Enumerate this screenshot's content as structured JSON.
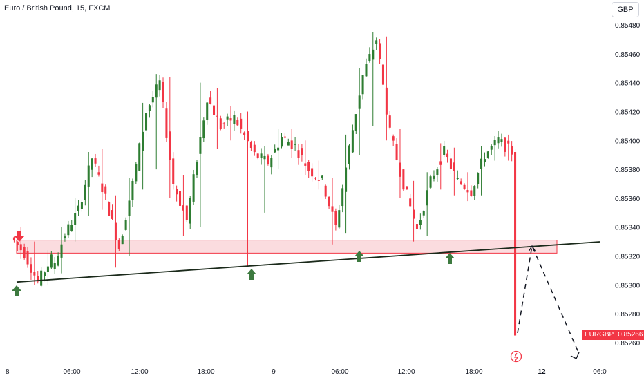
{
  "header": {
    "symbol_title": "Euro / British Pound, 15, FXCM",
    "currency_button": "GBP"
  },
  "last_price_label": {
    "symbol": "EURGBP",
    "price": "0.85266"
  },
  "colors": {
    "up": "#2e7d32",
    "down": "#f23645",
    "zone_fill": "#f9d0d4",
    "zone_border": "#f23645",
    "trendline": "#1b2a1b",
    "arrow_up": "#3d7a3f",
    "arrow_down": "#f23645",
    "axis_text": "#131722"
  },
  "icons": {
    "down_marker": "arrow-down-icon",
    "up_marker": "arrow-up-icon",
    "event": "lightning-icon"
  },
  "chart_data": {
    "type": "candlestick",
    "title": "Euro / British Pound, 15, FXCM",
    "y_axis": {
      "ticks": [
        "0.85480",
        "0.85460",
        "0.85440",
        "0.85420",
        "0.85400",
        "0.85380",
        "0.85360",
        "0.85340",
        "0.85320",
        "0.85300",
        "0.85280",
        "0.85260"
      ],
      "range": [
        0.85247,
        0.8549
      ],
      "position": "right"
    },
    "x_axis": {
      "ticks": [
        "8",
        "06:00",
        "12:00",
        "18:00",
        "9",
        "06:00",
        "12:00",
        "18:00",
        "12",
        "06:0"
      ],
      "bold_ticks": [
        "12"
      ]
    },
    "time_range": "8 to 12 (15-minute bars)",
    "ohlc_keypoints": [
      {
        "open": 0.85333,
        "close": 0.85322,
        "high": 0.8534,
        "low": 0.85318
      },
      {
        "open": 0.85322,
        "close": 0.85302,
        "high": 0.8533,
        "low": 0.853
      },
      {
        "open": 0.85302,
        "close": 0.85318,
        "high": 0.85324,
        "low": 0.853
      },
      {
        "open": 0.8531,
        "close": 0.85335,
        "high": 0.8534,
        "low": 0.85308
      },
      {
        "open": 0.85335,
        "close": 0.85352,
        "high": 0.8536,
        "low": 0.8533
      },
      {
        "open": 0.85352,
        "close": 0.85388,
        "high": 0.85392,
        "low": 0.85348
      },
      {
        "open": 0.85388,
        "close": 0.8536,
        "high": 0.85394,
        "low": 0.85352
      },
      {
        "open": 0.8536,
        "close": 0.85326,
        "high": 0.85362,
        "low": 0.85312
      },
      {
        "open": 0.85326,
        "close": 0.8537,
        "high": 0.85374,
        "low": 0.8532
      },
      {
        "open": 0.8537,
        "close": 0.8542,
        "high": 0.85426,
        "low": 0.85366
      },
      {
        "open": 0.8542,
        "close": 0.8544,
        "high": 0.85446,
        "low": 0.8538
      },
      {
        "open": 0.8544,
        "close": 0.8537,
        "high": 0.85444,
        "low": 0.8536
      },
      {
        "open": 0.8537,
        "close": 0.85345,
        "high": 0.85376,
        "low": 0.85334
      },
      {
        "open": 0.85345,
        "close": 0.8543,
        "high": 0.8544,
        "low": 0.8534
      },
      {
        "open": 0.8543,
        "close": 0.8541,
        "high": 0.85436,
        "low": 0.85394
      },
      {
        "open": 0.8541,
        "close": 0.85416,
        "high": 0.85424,
        "low": 0.854
      },
      {
        "open": 0.85416,
        "close": 0.8539,
        "high": 0.8542,
        "low": 0.85313
      },
      {
        "open": 0.8539,
        "close": 0.85385,
        "high": 0.85396,
        "low": 0.8535
      },
      {
        "open": 0.85385,
        "close": 0.85402,
        "high": 0.85408,
        "low": 0.8538
      },
      {
        "open": 0.85402,
        "close": 0.85396,
        "high": 0.85408,
        "low": 0.85388
      },
      {
        "open": 0.85396,
        "close": 0.8538,
        "high": 0.854,
        "low": 0.85376
      },
      {
        "open": 0.8538,
        "close": 0.85372,
        "high": 0.85386,
        "low": 0.85366
      },
      {
        "open": 0.85372,
        "close": 0.8534,
        "high": 0.85374,
        "low": 0.85328
      },
      {
        "open": 0.8534,
        "close": 0.85395,
        "high": 0.85404,
        "low": 0.85336
      },
      {
        "open": 0.85395,
        "close": 0.85445,
        "high": 0.8545,
        "low": 0.8539
      },
      {
        "open": 0.85445,
        "close": 0.8547,
        "high": 0.85475,
        "low": 0.8541
      },
      {
        "open": 0.8547,
        "close": 0.85405,
        "high": 0.85472,
        "low": 0.854
      },
      {
        "open": 0.85405,
        "close": 0.8537,
        "high": 0.85408,
        "low": 0.8536
      },
      {
        "open": 0.8537,
        "close": 0.85338,
        "high": 0.85372,
        "low": 0.8533
      },
      {
        "open": 0.85338,
        "close": 0.85372,
        "high": 0.85378,
        "low": 0.85334
      },
      {
        "open": 0.85372,
        "close": 0.85392,
        "high": 0.85398,
        "low": 0.85366
      },
      {
        "open": 0.85392,
        "close": 0.85372,
        "high": 0.85395,
        "low": 0.85362
      },
      {
        "open": 0.85372,
        "close": 0.85365,
        "high": 0.85378,
        "low": 0.85358
      },
      {
        "open": 0.85365,
        "close": 0.8539,
        "high": 0.85396,
        "low": 0.85362
      },
      {
        "open": 0.8539,
        "close": 0.854,
        "high": 0.85403,
        "low": 0.85386
      },
      {
        "open": 0.854,
        "close": 0.85392,
        "high": 0.85404,
        "low": 0.85386
      },
      {
        "open": 0.85392,
        "close": 0.85265,
        "high": 0.85394,
        "low": 0.85265
      }
    ]
  },
  "annotations": {
    "support_zone": {
      "price_low": 0.85322,
      "price_high": 0.85331
    },
    "ascending_trendline": {
      "from_price": 0.85302,
      "to_price": 0.8533
    },
    "up_arrow_count": 4,
    "down_arrow_count": 1,
    "projected_path": "dashed zig-zag up then down toward 0.85250"
  }
}
